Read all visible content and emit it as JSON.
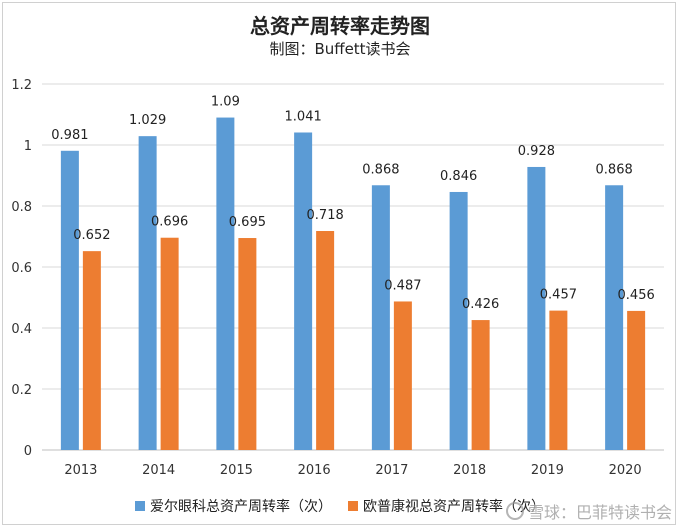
{
  "chart_data": {
    "type": "bar",
    "title": "总资产周转率走势图",
    "subtitle": "制图：Buffett读书会",
    "categories": [
      "2013",
      "2014",
      "2015",
      "2016",
      "2017",
      "2018",
      "2019",
      "2020"
    ],
    "series": [
      {
        "name": "爱尔眼科总资产周转率（次）",
        "color": "#5b9bd5",
        "values": [
          0.981,
          1.029,
          1.09,
          1.041,
          0.868,
          0.846,
          0.928,
          0.868
        ],
        "labels": [
          "0.981",
          "1.029",
          "1.09",
          "1.041",
          "0.868",
          "0.846",
          "0.928",
          "0.868"
        ]
      },
      {
        "name": "欧普康视总资产周转率（次）",
        "color": "#ed7d31",
        "values": [
          0.652,
          0.696,
          0.695,
          0.718,
          0.487,
          0.426,
          0.457,
          0.456
        ],
        "labels": [
          "0.652",
          "0.696",
          "0.695",
          "0.718",
          "0.487",
          "0.426",
          "0.457",
          "0.456"
        ]
      }
    ],
    "ylim": [
      0,
      1.2
    ],
    "yticks": [
      "0",
      "0.2",
      "0.4",
      "0.6",
      "0.8",
      "1",
      "1.2"
    ],
    "grid": true,
    "legend": "bottom"
  },
  "watermark": "雪球：巴菲特读书会"
}
